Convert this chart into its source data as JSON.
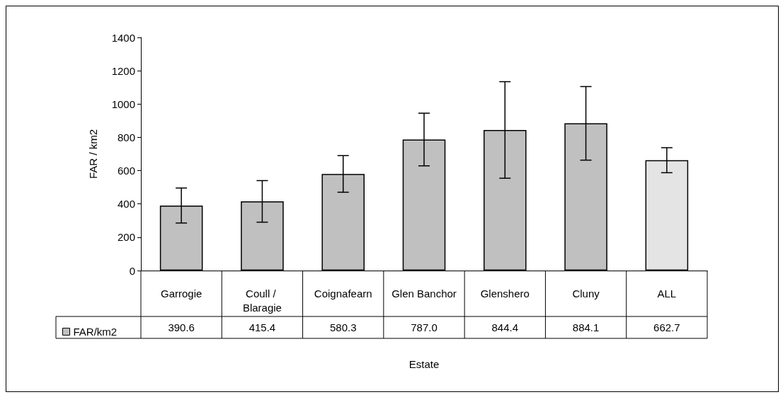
{
  "chart_data": {
    "type": "bar",
    "xlabel": "Estate",
    "ylabel": "FAR / km2",
    "categories": [
      "Garrogie",
      "Coull / Blaragie",
      "Coignafearn",
      "Glen Banchor",
      "Glenshero",
      "Cluny",
      "ALL"
    ],
    "series": [
      {
        "name": "FAR/km2",
        "color": "#c0c0c0",
        "colors": [
          "#c0c0c0",
          "#c0c0c0",
          "#c0c0c0",
          "#c0c0c0",
          "#c0c0c0",
          "#c0c0c0",
          "#e4e4e4"
        ],
        "values": [
          390.6,
          415.4,
          580.3,
          787.0,
          844.4,
          884.1,
          662.7
        ],
        "errors": [
          105,
          125,
          110,
          158,
          290,
          221,
          75
        ],
        "value_labels": [
          "390.6",
          "415.4",
          "580.3",
          "787.0",
          "844.4",
          "884.1",
          "662.7"
        ]
      }
    ],
    "ylim": [
      0,
      1400
    ],
    "yticks": [
      0,
      200,
      400,
      600,
      800,
      1000,
      1200,
      1400
    ],
    "grid": false,
    "legend": "bottom left"
  }
}
